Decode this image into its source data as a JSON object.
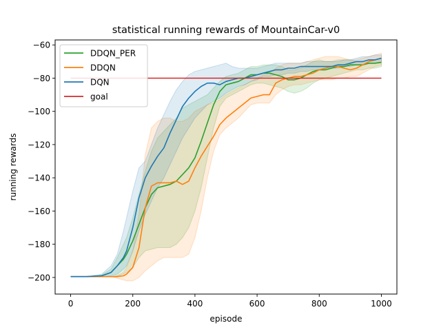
{
  "chart_data": {
    "type": "line",
    "title": "statistical running rewards of MountainCar-v0",
    "xlabel": "episode",
    "ylabel": "running rewards",
    "xlim": [
      -50,
      1050
    ],
    "ylim": [
      -210,
      -57
    ],
    "xticks": [
      0,
      200,
      400,
      600,
      800,
      1000
    ],
    "xtick_labels": [
      "0",
      "200",
      "400",
      "600",
      "800",
      "1000"
    ],
    "yticks": [
      -200,
      -180,
      -160,
      -140,
      -120,
      -100,
      -80,
      -60
    ],
    "ytick_labels": [
      "−200",
      "−180",
      "−160",
      "−140",
      "−120",
      "−100",
      "−80",
      "−60"
    ],
    "legend_position": "top-left",
    "grid": false,
    "x": [
      0,
      50,
      100,
      130,
      150,
      170,
      180,
      200,
      220,
      240,
      260,
      280,
      300,
      320,
      340,
      360,
      380,
      400,
      420,
      440,
      460,
      480,
      500,
      520,
      540,
      560,
      580,
      600,
      620,
      640,
      660,
      680,
      700,
      720,
      740,
      760,
      780,
      800,
      820,
      840,
      860,
      880,
      900,
      920,
      940,
      960,
      980,
      1000
    ],
    "series": [
      {
        "name": "DDQN_PER",
        "color": "#2ca02c",
        "values": [
          -199.5,
          -199.5,
          -199,
          -197,
          -193,
          -189,
          -186,
          -178,
          -168,
          -158,
          -150,
          -146,
          -145,
          -144,
          -142,
          -138,
          -134,
          -128,
          -118,
          -107,
          -96,
          -88,
          -84,
          -83,
          -82,
          -80,
          -78,
          -78,
          -77,
          -77,
          -78,
          -79,
          -81,
          -81,
          -80,
          -78,
          -76,
          -75,
          -75,
          -74,
          -73,
          -73,
          -72,
          -72,
          -72,
          -71,
          -71,
          -70.5
        ],
        "lower": [
          -199.5,
          -199.5,
          -199.5,
          -199.5,
          -199,
          -198,
          -197,
          -194,
          -188,
          -184,
          -183,
          -182,
          -182,
          -182,
          -180,
          -176,
          -170,
          -160,
          -146,
          -128,
          -110,
          -97,
          -92,
          -90,
          -88,
          -86,
          -84,
          -83,
          -83,
          -84,
          -85,
          -86,
          -88,
          -89,
          -88,
          -86,
          -83,
          -81,
          -80,
          -79,
          -78,
          -77,
          -76,
          -75,
          -75,
          -74,
          -74,
          -73
        ],
        "upper": [
          -199.5,
          -199.5,
          -198.5,
          -195,
          -188,
          -180,
          -176,
          -164,
          -150,
          -136,
          -124,
          -116,
          -112,
          -108,
          -104,
          -98,
          -96,
          -94,
          -92,
          -90,
          -86,
          -82,
          -79,
          -78,
          -77,
          -75,
          -73,
          -73,
          -72,
          -72,
          -72,
          -73,
          -75,
          -75,
          -74,
          -72,
          -70,
          -69,
          -70,
          -70,
          -69,
          -69,
          -69,
          -70,
          -70,
          -69,
          -69,
          -68
        ]
      },
      {
        "name": "DDQN",
        "color": "#ff7f0e",
        "values": [
          -199.5,
          -199.5,
          -199.5,
          -199.5,
          -199.5,
          -199,
          -198,
          -194,
          -182,
          -158,
          -145,
          -143,
          -143,
          -143,
          -142,
          -144,
          -142,
          -134,
          -127,
          -121,
          -115,
          -108,
          -104,
          -101,
          -98,
          -95,
          -92,
          -91,
          -90,
          -90,
          -83,
          -81,
          -80,
          -79,
          -79,
          -78,
          -77,
          -75,
          -74,
          -73,
          -73,
          -74,
          -75,
          -74,
          -72,
          -70,
          -69,
          -68
        ],
        "lower": [
          -199.5,
          -199.5,
          -199.5,
          -199.5,
          -200.5,
          -201.5,
          -202,
          -202,
          -200,
          -196,
          -193,
          -190,
          -188,
          -188,
          -188,
          -188,
          -186,
          -176,
          -160,
          -140,
          -124,
          -114,
          -110,
          -107,
          -104,
          -100,
          -96,
          -95,
          -95,
          -95,
          -90,
          -87,
          -85,
          -84,
          -84,
          -83,
          -82,
          -81,
          -81,
          -81,
          -80,
          -80,
          -79,
          -79,
          -77,
          -75,
          -73,
          -72
        ],
        "upper": [
          -199.5,
          -199.5,
          -199.5,
          -199.5,
          -199,
          -197,
          -194,
          -184,
          -162,
          -126,
          -110,
          -106,
          -104,
          -104,
          -106,
          -106,
          -104,
          -100,
          -98,
          -96,
          -95,
          -93,
          -90,
          -88,
          -86,
          -84,
          -82,
          -80,
          -78,
          -77,
          -74,
          -72,
          -71,
          -71,
          -71,
          -70,
          -69,
          -68,
          -67,
          -67,
          -67,
          -68,
          -69,
          -69,
          -68,
          -67,
          -66,
          -65
        ]
      },
      {
        "name": "DQN",
        "color": "#1f77b4",
        "values": [
          -199.5,
          -199.5,
          -199,
          -197,
          -193,
          -188,
          -184,
          -170,
          -152,
          -140,
          -133,
          -127,
          -122,
          -113,
          -105,
          -97,
          -92,
          -88,
          -85,
          -83,
          -83,
          -84,
          -82,
          -81,
          -80,
          -80,
          -79,
          -78,
          -77,
          -76,
          -75,
          -75,
          -74,
          -74,
          -73,
          -73,
          -73,
          -73,
          -73,
          -73,
          -72,
          -72,
          -71,
          -70,
          -70,
          -69,
          -69,
          -68
        ],
        "lower": [
          -199.5,
          -199.5,
          -199.5,
          -199,
          -198,
          -195,
          -193,
          -184,
          -172,
          -162,
          -154,
          -146,
          -140,
          -132,
          -124,
          -116,
          -110,
          -104,
          -100,
          -96,
          -94,
          -92,
          -89,
          -87,
          -85,
          -84,
          -82,
          -81,
          -79,
          -79,
          -78,
          -78,
          -77,
          -77,
          -76,
          -76,
          -75,
          -75,
          -75,
          -74,
          -74,
          -73,
          -73,
          -72,
          -72,
          -71,
          -71,
          -70
        ],
        "upper": [
          -199.5,
          -199.5,
          -198,
          -193,
          -186,
          -172,
          -164,
          -148,
          -134,
          -130,
          -120,
          -110,
          -102,
          -94,
          -87,
          -82,
          -78,
          -76,
          -75,
          -74,
          -73,
          -72,
          -71,
          -73,
          -74,
          -74,
          -74,
          -74,
          -73,
          -72,
          -71,
          -71,
          -71,
          -71,
          -71,
          -70,
          -70,
          -70,
          -70,
          -70,
          -70,
          -69,
          -69,
          -68,
          -67,
          -67,
          -66,
          -66
        ]
      },
      {
        "name": "goal",
        "color": "#d62728",
        "x": [
          0,
          1000
        ],
        "values": [
          -80,
          -80
        ]
      }
    ]
  }
}
